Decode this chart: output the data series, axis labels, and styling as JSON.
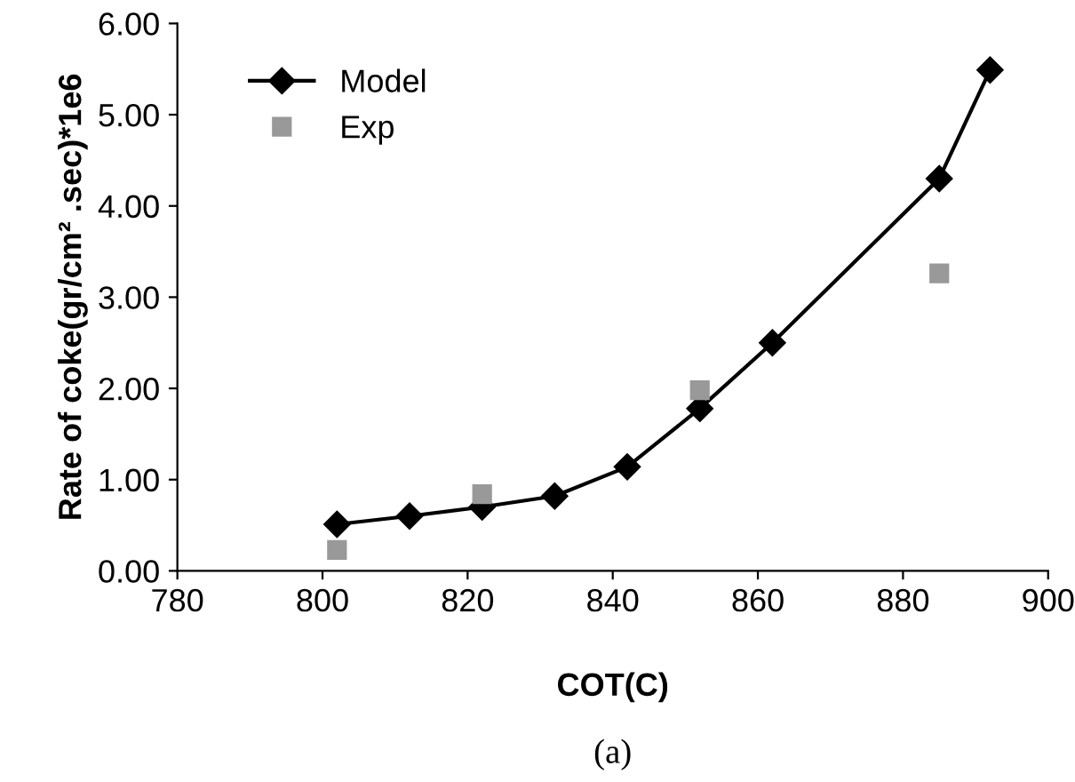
{
  "chart_data": {
    "type": "line",
    "xlabel": "COT(C)",
    "ylabel": "Rate of coke(gr/cm² .sec)*1e6",
    "annotations": [
      "(a)"
    ],
    "xlim": [
      780,
      900
    ],
    "xticks": [
      780,
      800,
      820,
      840,
      860,
      880,
      900
    ],
    "ylim": [
      0,
      6
    ],
    "yticks": [
      {
        "value": 0,
        "label": "0.00"
      },
      {
        "value": 1,
        "label": "1.00"
      },
      {
        "value": 2,
        "label": "2.00"
      },
      {
        "value": 3,
        "label": "3.00"
      },
      {
        "value": 4,
        "label": "4.00"
      },
      {
        "value": 5,
        "label": "5.00"
      },
      {
        "value": 6,
        "label": "6.00"
      }
    ],
    "grid": false,
    "legend": "top left",
    "series": [
      {
        "name": "Model",
        "marker": "diamond",
        "color": "#000000",
        "x": [
          802,
          812,
          822,
          832,
          842,
          852,
          862,
          885,
          892
        ],
        "values": [
          0.51,
          0.6,
          0.7,
          0.82,
          1.14,
          1.78,
          2.5,
          4.3,
          5.49
        ]
      },
      {
        "name": "Exp",
        "type": "scatter",
        "marker": "square",
        "color": "#999999",
        "x": [
          802,
          822,
          852,
          885
        ],
        "values": [
          0.23,
          0.84,
          1.98,
          3.26
        ]
      }
    ]
  }
}
